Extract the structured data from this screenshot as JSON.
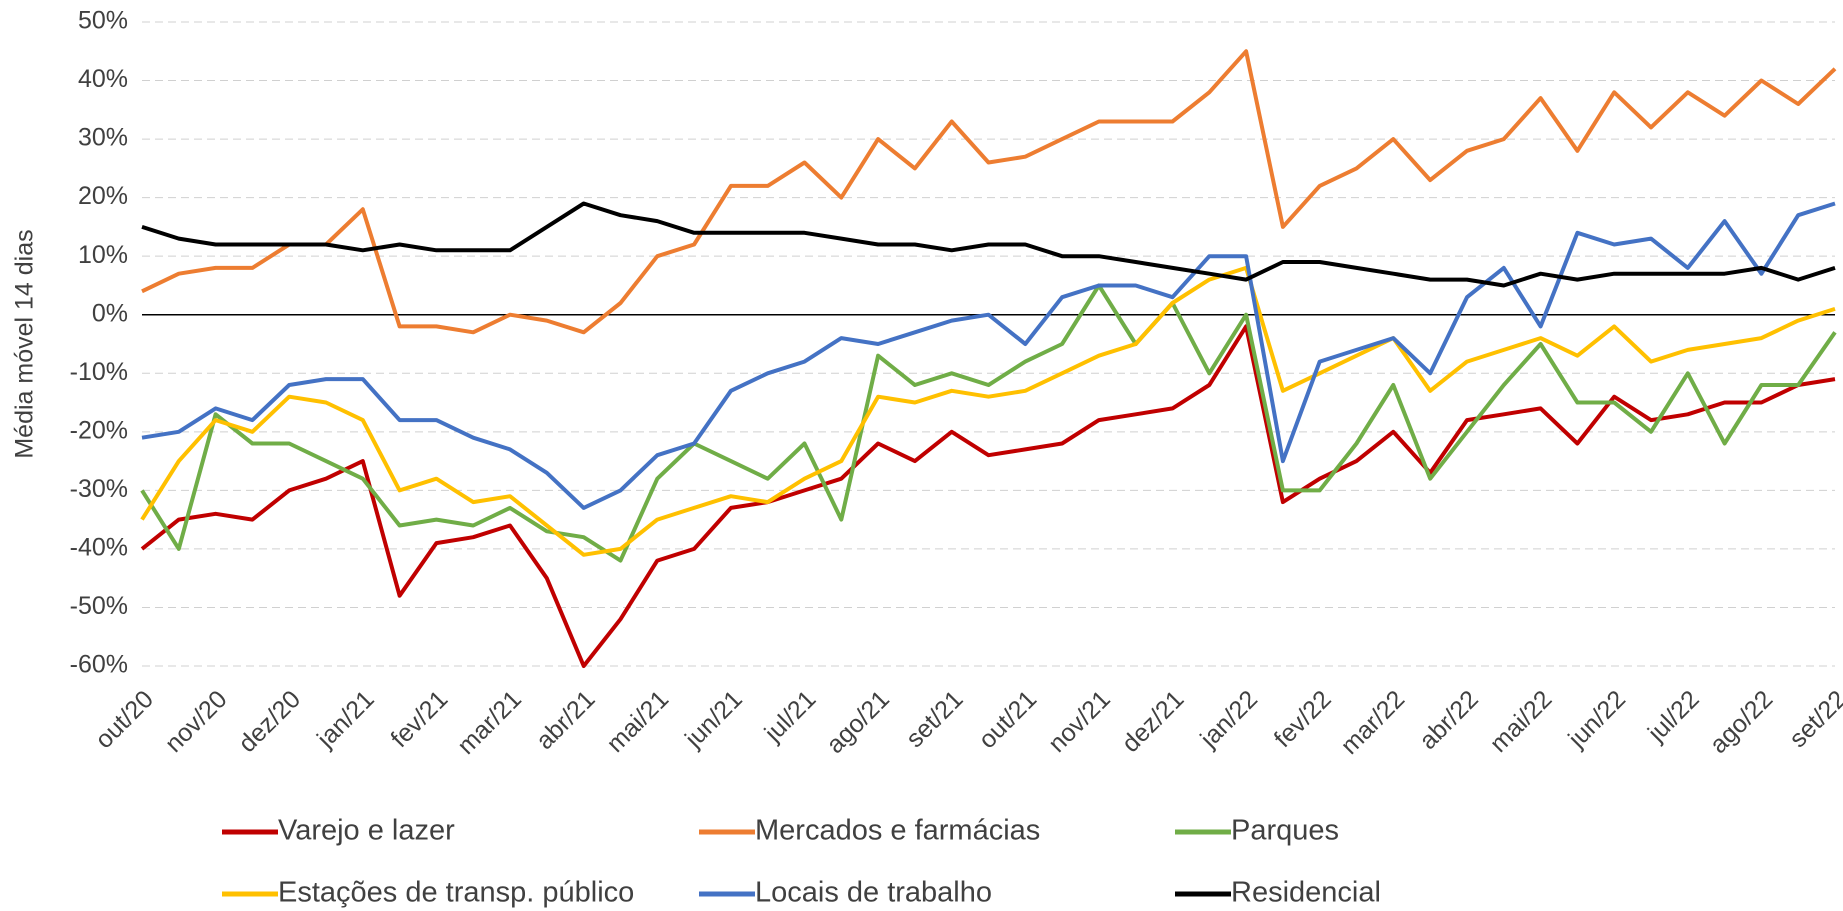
{
  "chart_data": {
    "type": "line",
    "y_label": "Média móvel 14 dias",
    "categories": [
      "out/20",
      null,
      "nov/20",
      null,
      "dez/20",
      null,
      "jan/21",
      null,
      "fev/21",
      null,
      "mar/21",
      null,
      "abr/21",
      null,
      "mai/21",
      null,
      "jun/21",
      null,
      "jul/21",
      null,
      "ago/21",
      null,
      "set/21",
      null,
      "out/21",
      null,
      "nov/21",
      null,
      "dez/21",
      null,
      "jan/22",
      null,
      "fev/22",
      null,
      "mar/22",
      null,
      "abr/22",
      null,
      "mai/22",
      null,
      "jun/22",
      null,
      "jul/22",
      null,
      "ago/22",
      null,
      "set/22"
    ],
    "series": [
      {
        "name": "Varejo e lazer",
        "color": "#c00000",
        "values": [
          -40,
          -35,
          -34,
          -35,
          -30,
          -28,
          -25,
          -48,
          -39,
          -38,
          -36,
          -45,
          -60,
          -52,
          -42,
          -40,
          -33,
          -32,
          -30,
          -28,
          -22,
          -25,
          -20,
          -24,
          -23,
          -22,
          -18,
          -17,
          -16,
          -12,
          -2,
          -32,
          -28,
          -25,
          -20,
          -27,
          -18,
          -17,
          -16,
          -22,
          -14,
          -18,
          -17,
          -15,
          -15,
          -12,
          -11
        ]
      },
      {
        "name": "Mercados e farmácias",
        "color": "#ed7d31",
        "values": [
          4,
          7,
          8,
          8,
          12,
          12,
          18,
          -2,
          -2,
          -3,
          0,
          -1,
          -3,
          2,
          10,
          12,
          22,
          22,
          26,
          20,
          30,
          25,
          33,
          26,
          27,
          30,
          33,
          33,
          33,
          38,
          45,
          15,
          22,
          25,
          30,
          23,
          28,
          30,
          37,
          28,
          38,
          32,
          38,
          34,
          40,
          36,
          42
        ]
      },
      {
        "name": "Parques",
        "color": "#70ad47",
        "values": [
          -30,
          -40,
          -17,
          -22,
          -22,
          -25,
          -28,
          -36,
          -35,
          -36,
          -33,
          -37,
          -38,
          -42,
          -28,
          -22,
          -25,
          -28,
          -22,
          -35,
          -7,
          -12,
          -10,
          -12,
          -8,
          -5,
          5,
          -5,
          2,
          -10,
          0,
          -30,
          -30,
          -22,
          -12,
          -28,
          -20,
          -12,
          -5,
          -15,
          -15,
          -20,
          -10,
          -22,
          -12,
          -12,
          -3
        ]
      },
      {
        "name": "Estações de transp. público",
        "color": "#ffc000",
        "values": [
          -35,
          -25,
          -18,
          -20,
          -14,
          -15,
          -18,
          -30,
          -28,
          -32,
          -31,
          -36,
          -41,
          -40,
          -35,
          -33,
          -31,
          -32,
          -28,
          -25,
          -14,
          -15,
          -13,
          -14,
          -13,
          -10,
          -7,
          -5,
          2,
          6,
          8,
          -13,
          -10,
          -7,
          -4,
          -13,
          -8,
          -6,
          -4,
          -7,
          -2,
          -8,
          -6,
          -5,
          -4,
          -1,
          1
        ]
      },
      {
        "name": "Locais de trabalho",
        "color": "#4472c4",
        "values": [
          -21,
          -20,
          -16,
          -18,
          -12,
          -11,
          -11,
          -18,
          -18,
          -21,
          -23,
          -27,
          -33,
          -30,
          -24,
          -22,
          -13,
          -10,
          -8,
          -4,
          -5,
          -3,
          -1,
          0,
          -5,
          3,
          5,
          5,
          3,
          10,
          10,
          -25,
          -8,
          -6,
          -4,
          -10,
          3,
          8,
          -2,
          14,
          12,
          13,
          8,
          16,
          7,
          17,
          19
        ]
      },
      {
        "name": "Residencial",
        "color": "#000000",
        "values": [
          15,
          13,
          12,
          12,
          12,
          12,
          11,
          12,
          11,
          11,
          11,
          15,
          19,
          17,
          16,
          14,
          14,
          14,
          14,
          13,
          12,
          12,
          11,
          12,
          12,
          10,
          10,
          9,
          8,
          7,
          6,
          9,
          9,
          8,
          7,
          6,
          6,
          5,
          7,
          6,
          7,
          7,
          7,
          7,
          8,
          6,
          8
        ]
      }
    ],
    "ylim": [
      -60,
      50
    ],
    "yticks": [
      {
        "value": -60,
        "label": "-60%"
      },
      {
        "value": -50,
        "label": "-50%"
      },
      {
        "value": -40,
        "label": "-40%"
      },
      {
        "value": -30,
        "label": "-30%"
      },
      {
        "value": -20,
        "label": "-20%"
      },
      {
        "value": -10,
        "label": "-10%"
      },
      {
        "value": 0,
        "label": "0%"
      },
      {
        "value": 10,
        "label": "10%"
      },
      {
        "value": 20,
        "label": "20%"
      },
      {
        "value": 30,
        "label": "30%"
      },
      {
        "value": 40,
        "label": "40%"
      },
      {
        "value": 50,
        "label": "50%"
      }
    ],
    "grid": true,
    "legend": "bottom"
  }
}
